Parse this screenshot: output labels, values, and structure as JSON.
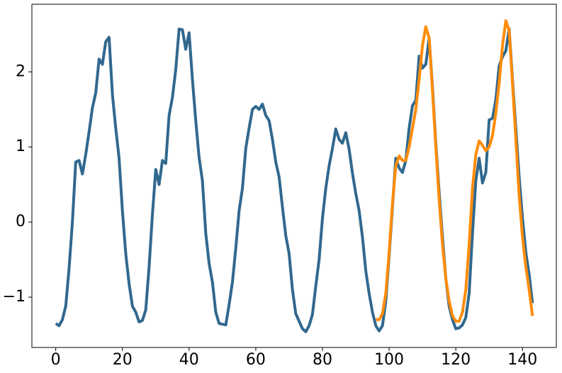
{
  "chart_data": {
    "type": "line",
    "series": [
      {
        "color": "#31688e",
        "x": [
          0,
          1,
          2,
          3,
          4,
          5,
          6,
          7,
          8,
          9,
          10,
          11,
          12,
          13,
          14,
          15,
          16,
          17,
          18,
          19,
          20,
          21,
          22,
          23,
          24,
          25,
          26,
          27,
          28,
          29,
          30,
          31,
          32,
          33,
          34,
          35,
          36,
          37,
          38,
          39,
          40,
          41,
          42,
          43,
          44,
          45,
          46,
          47,
          48,
          49,
          50,
          51,
          52,
          53,
          54,
          55,
          56,
          57,
          58,
          59,
          60,
          61,
          62,
          63,
          64,
          65,
          66,
          67,
          68,
          69,
          70,
          71,
          72,
          73,
          74,
          75,
          76,
          77,
          78,
          79,
          80,
          81,
          82,
          83,
          84,
          85,
          86,
          87,
          88,
          89,
          90,
          91,
          92,
          93,
          94,
          95,
          96,
          97,
          98,
          99,
          100,
          101,
          102,
          103,
          104,
          105,
          106,
          107,
          108,
          109,
          110,
          111,
          112,
          113,
          114,
          115,
          116,
          117,
          118,
          119,
          120,
          121,
          122,
          123,
          124,
          125,
          126,
          127,
          128,
          129,
          130,
          131,
          132,
          133,
          134,
          135,
          136,
          137,
          138,
          139,
          140,
          141,
          142,
          143
        ],
        "values": [
          -1.35,
          -1.38,
          -1.3,
          -1.12,
          -0.62,
          0.0,
          0.8,
          0.82,
          0.64,
          0.9,
          1.2,
          1.52,
          1.72,
          2.17,
          2.1,
          2.4,
          2.46,
          1.7,
          1.25,
          0.85,
          0.15,
          -0.42,
          -0.82,
          -1.12,
          -1.2,
          -1.33,
          -1.31,
          -1.17,
          -0.6,
          0.1,
          0.7,
          0.5,
          0.82,
          0.78,
          1.42,
          1.66,
          2.03,
          2.57,
          2.56,
          2.3,
          2.52,
          1.9,
          1.35,
          0.86,
          0.55,
          -0.15,
          -0.55,
          -0.8,
          -1.2,
          -1.35,
          -1.36,
          -1.37,
          -1.1,
          -0.8,
          -0.35,
          0.15,
          0.45,
          0.98,
          1.25,
          1.5,
          1.54,
          1.5,
          1.57,
          1.42,
          1.35,
          1.1,
          0.8,
          0.6,
          0.2,
          -0.18,
          -0.42,
          -0.9,
          -1.22,
          -1.32,
          -1.42,
          -1.46,
          -1.38,
          -1.23,
          -0.85,
          -0.5,
          0.05,
          0.45,
          0.75,
          0.98,
          1.24,
          1.1,
          1.05,
          1.19,
          0.97,
          0.65,
          0.38,
          0.15,
          -0.2,
          -0.65,
          -0.95,
          -1.2,
          -1.38,
          -1.45,
          -1.38,
          -1.05,
          -0.45,
          0.2,
          0.85,
          0.72,
          0.66,
          0.82,
          1.25,
          1.55,
          1.62,
          2.21,
          2.05,
          2.1,
          2.45,
          1.8,
          1.05,
          0.4,
          -0.2,
          -0.75,
          -1.12,
          -1.3,
          -1.42,
          -1.41,
          -1.37,
          -1.27,
          -0.95,
          -0.15,
          0.55,
          0.85,
          0.52,
          0.66,
          1.36,
          1.38,
          1.63,
          2.08,
          2.2,
          2.28,
          2.57,
          1.9,
          1.25,
          0.6,
          0.05,
          -0.4,
          -0.7,
          -1.08
        ]
      },
      {
        "color": "#ff8c0a",
        "x": [
          96,
          97,
          98,
          99,
          100,
          101,
          102,
          103,
          104,
          105,
          106,
          107,
          108,
          109,
          110,
          111,
          112,
          113,
          114,
          115,
          116,
          117,
          118,
          119,
          120,
          121,
          122,
          123,
          124,
          125,
          126,
          127,
          128,
          129,
          130,
          131,
          132,
          133,
          134,
          135,
          136,
          137,
          138,
          139,
          140,
          141,
          142,
          143
        ],
        "values": [
          -1.3,
          -1.3,
          -1.22,
          -0.95,
          -0.4,
          0.25,
          0.75,
          0.88,
          0.82,
          0.82,
          1.0,
          1.25,
          1.5,
          1.9,
          2.35,
          2.6,
          2.45,
          1.75,
          1.0,
          0.3,
          -0.3,
          -0.75,
          -1.05,
          -1.25,
          -1.32,
          -1.32,
          -1.2,
          -0.9,
          -0.3,
          0.45,
          0.9,
          1.08,
          1.02,
          0.95,
          1.0,
          1.15,
          1.45,
          1.85,
          2.35,
          2.68,
          2.55,
          1.85,
          1.1,
          0.35,
          -0.2,
          -0.6,
          -0.9,
          -1.25
        ]
      }
    ],
    "xlim": [
      -7.15,
      150.15
    ],
    "xticks": [
      0,
      20,
      40,
      60,
      80,
      100,
      120,
      140
    ],
    "ylim": [
      -1.67,
      2.9
    ],
    "yticks": [
      {
        "value": -1,
        "label": "−1"
      },
      0,
      1,
      2
    ]
  }
}
